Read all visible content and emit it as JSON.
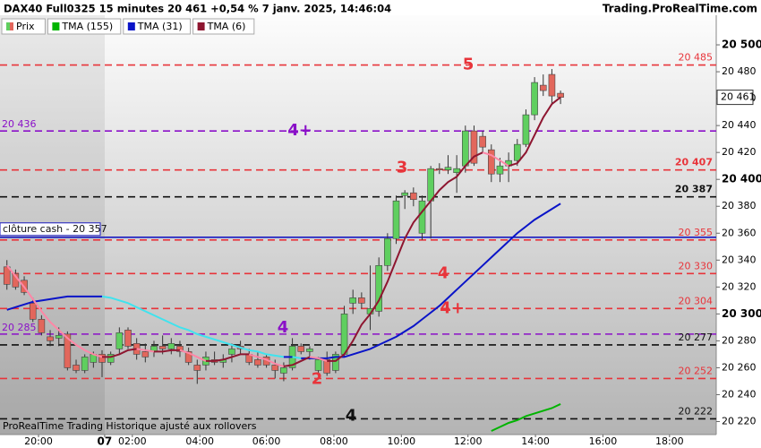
{
  "chart_data": {
    "type": "candlestick",
    "title": "DAX40 Full0325 15 minutes 20 461 +0,54 % 7 janv. 2025, 14:46:04",
    "source": "Trading.ProRealTime.com",
    "footnote": "ProRealTime Trading Historique ajusté aux rollovers",
    "xlim": [
      0.2,
      83
    ],
    "xticks": [
      {
        "value": 4.65,
        "label": "20:00"
      },
      {
        "value": 12.3,
        "label": "07"
      },
      {
        "value": 15.5,
        "label": "02:00"
      },
      {
        "value": 23.3,
        "label": "04:00"
      },
      {
        "value": 31.0,
        "label": "06:00"
      },
      {
        "value": 38.8,
        "label": "08:00"
      },
      {
        "value": 46.6,
        "label": "10:00"
      },
      {
        "value": 54.3,
        "label": "12:00"
      },
      {
        "value": 62.1,
        "label": "14:00"
      },
      {
        "value": 69.9,
        "label": "16:00"
      },
      {
        "value": 77.6,
        "label": "18:00"
      }
    ],
    "ylim": [
      20211,
      20522
    ],
    "yticks": [
      {
        "value": 20220,
        "label": "20 220"
      },
      {
        "value": 20240,
        "label": "20 240"
      },
      {
        "value": 20260,
        "label": "20 260"
      },
      {
        "value": 20280,
        "label": "20 280"
      },
      {
        "value": 20300,
        "label": "20 300"
      },
      {
        "value": 20320,
        "label": "20 320"
      },
      {
        "value": 20340,
        "label": "20 340"
      },
      {
        "value": 20360,
        "label": "20 360"
      },
      {
        "value": 20380,
        "label": "20 380"
      },
      {
        "value": 20400,
        "label": "20 400"
      },
      {
        "value": 20420,
        "label": "20 420"
      },
      {
        "value": 20440,
        "label": "20 440"
      },
      {
        "value": 20460,
        "label": "20 460"
      },
      {
        "value": 20480,
        "label": "20 480"
      },
      {
        "value": 20500,
        "label": "20 500"
      }
    ],
    "last": {
      "value": 20461,
      "label": "20 461"
    },
    "candles": {
      "name": "Prix",
      "up_color": "#5fcf5f",
      "down_color": "#e2675c",
      "x": [
        1,
        2,
        3,
        4,
        5,
        6,
        7,
        8,
        9,
        10,
        11,
        12,
        13,
        14,
        15,
        16,
        17,
        18,
        19,
        20,
        21,
        22,
        23,
        24,
        25,
        26,
        27,
        28,
        29,
        30,
        31,
        32,
        33,
        34,
        35,
        36,
        37,
        38,
        39,
        40,
        41,
        42,
        43,
        44,
        45,
        46,
        47,
        48,
        49,
        50,
        51,
        52,
        53,
        54,
        55,
        56,
        57,
        58,
        59,
        60,
        61,
        62,
        63,
        64,
        65
      ],
      "open": [
        20335,
        20330,
        20325,
        20308,
        20296,
        20283,
        20282,
        20285,
        20262,
        20258,
        20264,
        20270,
        20264,
        20274,
        20288,
        20278,
        20272,
        20272,
        20276,
        20274,
        20276,
        20272,
        20262,
        20262,
        20266,
        20264,
        20270,
        20276,
        20270,
        20266,
        20268,
        20262,
        20256,
        20260,
        20276,
        20272,
        20258,
        20266,
        20258,
        20270,
        20308,
        20312,
        20300,
        20302,
        20336,
        20356,
        20388,
        20390,
        20360,
        20384,
        20408,
        20407,
        20405,
        20410,
        20436,
        20432,
        20422,
        20404,
        20410,
        20414,
        20426,
        20448,
        20470,
        20478,
        20464
      ],
      "high": [
        20340,
        20333,
        20328,
        20312,
        20299,
        20288,
        20290,
        20287,
        20266,
        20270,
        20272,
        20273,
        20272,
        20290,
        20290,
        20282,
        20278,
        20280,
        20284,
        20282,
        20280,
        20275,
        20266,
        20272,
        20272,
        20270,
        20278,
        20280,
        20274,
        20272,
        20270,
        20266,
        20264,
        20282,
        20278,
        20276,
        20268,
        20272,
        20272,
        20306,
        20318,
        20316,
        20336,
        20342,
        20360,
        20388,
        20392,
        20394,
        20388,
        20410,
        20412,
        20418,
        20418,
        20440,
        20440,
        20436,
        20426,
        20416,
        20420,
        20430,
        20452,
        20476,
        20478,
        20482,
        20466
      ],
      "low": [
        20318,
        20318,
        20314,
        20294,
        20284,
        20276,
        20276,
        20258,
        20256,
        20256,
        20260,
        20253,
        20262,
        20270,
        20274,
        20266,
        20264,
        20268,
        20270,
        20270,
        20268,
        20262,
        20248,
        20258,
        20262,
        20260,
        20264,
        20270,
        20262,
        20260,
        20260,
        20252,
        20250,
        20258,
        20270,
        20266,
        20254,
        20254,
        20256,
        20268,
        20300,
        20304,
        20288,
        20298,
        20332,
        20352,
        20378,
        20380,
        20355,
        20356,
        20404,
        20404,
        20390,
        20405,
        20410,
        20420,
        20398,
        20398,
        20398,
        20410,
        20424,
        20444,
        20462,
        20456,
        20456
      ],
      "close": [
        20322,
        20320,
        20316,
        20296,
        20286,
        20280,
        20284,
        20260,
        20258,
        20268,
        20270,
        20264,
        20270,
        20286,
        20276,
        20270,
        20268,
        20276,
        20274,
        20278,
        20272,
        20264,
        20258,
        20268,
        20264,
        20266,
        20274,
        20274,
        20264,
        20262,
        20262,
        20258,
        20260,
        20276,
        20272,
        20274,
        20266,
        20256,
        20270,
        20300,
        20312,
        20308,
        20304,
        20336,
        20356,
        20384,
        20390,
        20385,
        20384,
        20408,
        20407,
        20409,
        20408,
        20436,
        20412,
        20424,
        20404,
        20410,
        20414,
        20426,
        20448,
        20472,
        20466,
        20462,
        20461
      ]
    },
    "series": [
      {
        "name": "TMA (155)",
        "color": "#00b400",
        "color_down": "#00b400",
        "values": [
          null,
          null,
          null,
          null,
          null,
          null,
          null,
          null,
          null,
          null,
          null,
          null,
          null,
          null,
          null,
          null,
          null,
          null,
          null,
          null,
          null,
          null,
          null,
          null,
          null,
          null,
          null,
          null,
          null,
          null,
          null,
          null,
          null,
          null,
          null,
          null,
          null,
          null,
          null,
          null,
          null,
          null,
          null,
          null,
          null,
          null,
          null,
          null,
          null,
          null,
          null,
          null,
          null,
          null,
          null,
          null,
          20213,
          20216,
          20219,
          20221,
          20224,
          20226,
          20228,
          20230,
          20233
        ]
      },
      {
        "name": "TMA (31)",
        "color": "#0a14c8",
        "color_down": "#3fe3ee",
        "values": [
          20303,
          20305,
          20307,
          20309,
          20310,
          20311,
          20312,
          20313,
          20313,
          20313,
          20313,
          20313,
          20312,
          20310,
          20308,
          20305,
          20302,
          20299,
          20296,
          20293,
          20290,
          20288,
          20285,
          20283,
          20281,
          20279,
          20277,
          20275,
          20273,
          20272,
          20270,
          20269,
          20268,
          20268,
          20267,
          20267,
          20267,
          20267,
          20268,
          20268,
          20270,
          20272,
          20274,
          20277,
          20280,
          20283,
          20287,
          20291,
          20296,
          20301,
          20306,
          20312,
          20318,
          20324,
          20330,
          20336,
          20342,
          20348,
          20354,
          20360,
          20365,
          20370,
          20374,
          20378,
          20382
        ]
      },
      {
        "name": "TMA (6)",
        "color": "#8e1630",
        "color_down": "#ff86a6",
        "values": [
          20336,
          20328,
          20320,
          20311,
          20302,
          20294,
          20288,
          20282,
          20277,
          20273,
          20270,
          20268,
          20268,
          20270,
          20273,
          20274,
          20273,
          20272,
          20272,
          20273,
          20273,
          20271,
          20268,
          20265,
          20265,
          20266,
          20268,
          20270,
          20270,
          20268,
          20266,
          20263,
          20261,
          20262,
          20265,
          20268,
          20267,
          20265,
          20265,
          20270,
          20280,
          20292,
          20300,
          20310,
          20324,
          20340,
          20356,
          20368,
          20376,
          20384,
          20392,
          20398,
          20402,
          20410,
          20417,
          20420,
          20418,
          20414,
          20410,
          20412,
          20420,
          20433,
          20446,
          20456,
          20461
        ]
      }
    ],
    "levels": [
      {
        "value": 20485,
        "color": "#e8343a",
        "style": "dashed",
        "label": "20 485",
        "side": "right",
        "note": "5"
      },
      {
        "value": 20436,
        "color": "#8a10c8",
        "style": "dashed",
        "label": "20 436",
        "side": "left",
        "note": "4+"
      },
      {
        "value": 20407,
        "color": "#e8343a",
        "style": "dashed",
        "label": "20 407",
        "side": "right",
        "bold": true,
        "note": "3"
      },
      {
        "value": 20387,
        "color": "#111111",
        "style": "dashed",
        "label": "20 387",
        "side": "right",
        "bold": true
      },
      {
        "value": 20357,
        "color": "#1a1ac0",
        "style": "solid",
        "label": "clôture cash -  20 357",
        "side": "left-box"
      },
      {
        "value": 20355,
        "color": "#e8343a",
        "style": "dashed",
        "label": "20 355",
        "side": "right"
      },
      {
        "value": 20330,
        "color": "#e8343a",
        "style": "dashed",
        "label": "20 330",
        "side": "right",
        "note": "4"
      },
      {
        "value": 20304,
        "color": "#e8343a",
        "style": "dashed",
        "label": "20 304",
        "side": "right",
        "note": "4+"
      },
      {
        "value": 20285,
        "color": "#8a10c8",
        "style": "dashed",
        "label": "20 285",
        "side": "left",
        "note": "4"
      },
      {
        "value": 20277,
        "color": "#111111",
        "style": "dashed",
        "label": "20 277",
        "side": "right"
      },
      {
        "value": 20252,
        "color": "#e8343a",
        "style": "dashed",
        "label": "20 252",
        "side": "right",
        "note": "2"
      },
      {
        "value": 20222,
        "color": "#111111",
        "style": "dashed",
        "label": "20 222",
        "side": "right",
        "note": "4"
      }
    ]
  }
}
